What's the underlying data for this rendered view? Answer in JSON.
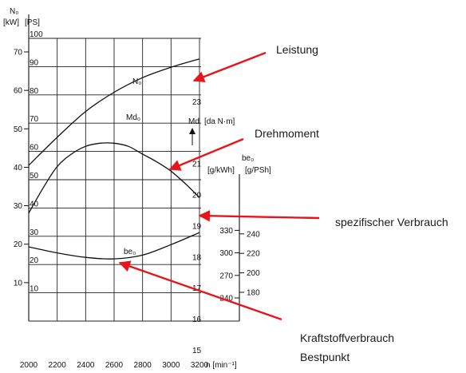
{
  "chart_data": {
    "type": "line",
    "x": [
      2000,
      2200,
      2400,
      2600,
      2800,
      3000,
      3200
    ],
    "xlim": [
      2000,
      3200
    ],
    "x_tick_labels": [
      "2000",
      "2200",
      "2400",
      "2600",
      "2800",
      "3000",
      "3200"
    ],
    "x_unit_label": "n [min⁻¹]",
    "left_axes": {
      "kw": {
        "header": "N₀",
        "unit": "[kW]",
        "ticks": [
          10,
          20,
          30,
          40,
          50,
          60,
          70
        ],
        "lim": [
          0,
          73.5
        ]
      },
      "ps": {
        "unit": "[PS]",
        "ticks": [
          10,
          20,
          30,
          40,
          50,
          60,
          70,
          80,
          90,
          100
        ],
        "lim": [
          0,
          100
        ]
      }
    },
    "right_axes": {
      "md": {
        "header": "Md",
        "unit": "[da N·m]",
        "ticks": [
          15,
          16,
          17,
          18,
          19,
          20,
          21,
          23
        ]
      },
      "be_kwh": {
        "header": "be₀",
        "unit": "[g/kWh]",
        "ticks": [
          240,
          270,
          300,
          330
        ]
      },
      "be_psh": {
        "unit": "[g/PSh]",
        "ticks": [
          180,
          200,
          220,
          240
        ]
      }
    },
    "series": [
      {
        "name": "N₀",
        "unit": "kW",
        "x": [
          2000,
          2200,
          2400,
          2600,
          2800,
          3000,
          3200
        ],
        "values": [
          40.5,
          47.8,
          54.5,
          59.5,
          63.3,
          66.0,
          68.2
        ]
      },
      {
        "name": "Md₀",
        "unit": "da N·m",
        "x": [
          2000,
          2100,
          2200,
          2300,
          2400,
          2500,
          2600,
          2700,
          2800,
          2900,
          3000,
          3100,
          3200
        ],
        "values": [
          19.4,
          20.2,
          20.9,
          21.3,
          21.55,
          21.65,
          21.65,
          21.55,
          21.3,
          21.05,
          20.75,
          20.35,
          19.9
        ]
      },
      {
        "name": "be₀",
        "unit": "g/kWh",
        "x": [
          2000,
          2200,
          2400,
          2600,
          2800,
          3000,
          3200
        ],
        "values": [
          308,
          300,
          294,
          292,
          297,
          311,
          327
        ]
      }
    ],
    "grid": true
  },
  "annotations": {
    "leistung": "Leistung",
    "drehmoment": "Drehmoment",
    "verbrauch": "spezifischer Verbrauch",
    "bestpunkt_line1": "Kraftstoffverbrauch",
    "bestpunkt_line2": "Bestpunkt"
  },
  "colors": {
    "arrow": "#e8141c",
    "curve": "#111111",
    "grid": "#222222"
  }
}
